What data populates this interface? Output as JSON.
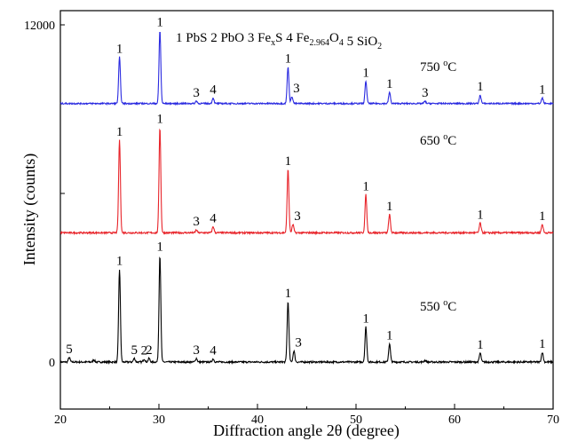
{
  "chart_data": {
    "type": "line",
    "xlabel": "Diffraction angle 2θ (degree)",
    "ylabel": "Intensity (counts)",
    "xlim": [
      20,
      70
    ],
    "ylim": [
      0,
      12000
    ],
    "x_ticks": [
      20,
      30,
      40,
      50,
      60,
      70
    ],
    "y_tick_labels": [
      "0",
      "12000"
    ],
    "grid": false,
    "legend_items": [
      {
        "num": "1",
        "base": "PbS"
      },
      {
        "num": "2",
        "base": "PbO"
      },
      {
        "num": "3",
        "base": "Fe",
        "sub": "x",
        "tail": "S"
      },
      {
        "num": "4",
        "base": "Fe",
        "sub": "2.964",
        "tail": "O",
        "sub2": "4"
      },
      {
        "num": "5",
        "base": "SiO",
        "sub": "2"
      }
    ],
    "series": [
      {
        "temp_value": "550",
        "temp_unit": "C",
        "temp_degree": "o",
        "color": "#000000",
        "offset": 0,
        "noise": 60,
        "peaks": [
          {
            "x": 20.9,
            "y": 160,
            "label": "5"
          },
          {
            "x": 23.4,
            "y": 80,
            "label": ""
          },
          {
            "x": 26.0,
            "y": 3300,
            "label": "1"
          },
          {
            "x": 27.5,
            "y": 130,
            "label": "5"
          },
          {
            "x": 28.5,
            "y": 110,
            "label": "2"
          },
          {
            "x": 29.0,
            "y": 130,
            "label": "2"
          },
          {
            "x": 30.1,
            "y": 3800,
            "label": "1"
          },
          {
            "x": 33.8,
            "y": 130,
            "label": "3"
          },
          {
            "x": 35.5,
            "y": 110,
            "label": "4"
          },
          {
            "x": 43.1,
            "y": 2150,
            "label": "1"
          },
          {
            "x": 43.7,
            "y": 400,
            "label": "3"
          },
          {
            "x": 51.0,
            "y": 1250,
            "label": "1"
          },
          {
            "x": 53.4,
            "y": 650,
            "label": "1"
          },
          {
            "x": 57.0,
            "y": 60,
            "label": ""
          },
          {
            "x": 62.6,
            "y": 320,
            "label": "1"
          },
          {
            "x": 68.9,
            "y": 350,
            "label": "1"
          }
        ]
      },
      {
        "temp_value": "650",
        "temp_unit": "C",
        "temp_degree": "o",
        "color": "#e8242a",
        "offset": 4600,
        "noise": 60,
        "peaks": [
          {
            "x": 26.0,
            "y": 3300,
            "label": "1"
          },
          {
            "x": 30.1,
            "y": 3750,
            "label": "1"
          },
          {
            "x": 33.8,
            "y": 100,
            "label": "3"
          },
          {
            "x": 35.5,
            "y": 220,
            "label": "4"
          },
          {
            "x": 43.1,
            "y": 2250,
            "label": "1"
          },
          {
            "x": 43.6,
            "y": 300,
            "label": "3"
          },
          {
            "x": 51.0,
            "y": 1350,
            "label": "1"
          },
          {
            "x": 53.4,
            "y": 650,
            "label": "1"
          },
          {
            "x": 62.6,
            "y": 350,
            "label": "1"
          },
          {
            "x": 68.9,
            "y": 300,
            "label": "1"
          }
        ]
      },
      {
        "temp_value": "750",
        "temp_unit": "C",
        "temp_degree": "o",
        "color": "#2a2ae0",
        "offset": 9200,
        "noise": 50,
        "peaks": [
          {
            "x": 26.0,
            "y": 1650,
            "label": "1"
          },
          {
            "x": 30.1,
            "y": 2600,
            "label": "1"
          },
          {
            "x": 33.8,
            "y": 90,
            "label": "3"
          },
          {
            "x": 35.5,
            "y": 200,
            "label": "4"
          },
          {
            "x": 43.1,
            "y": 1300,
            "label": "1"
          },
          {
            "x": 43.5,
            "y": 250,
            "label": "3"
          },
          {
            "x": 51.0,
            "y": 800,
            "label": "1"
          },
          {
            "x": 53.4,
            "y": 400,
            "label": "1"
          },
          {
            "x": 57.0,
            "y": 80,
            "label": "3"
          },
          {
            "x": 62.6,
            "y": 300,
            "label": "1"
          },
          {
            "x": 68.9,
            "y": 200,
            "label": "1"
          }
        ]
      }
    ]
  }
}
